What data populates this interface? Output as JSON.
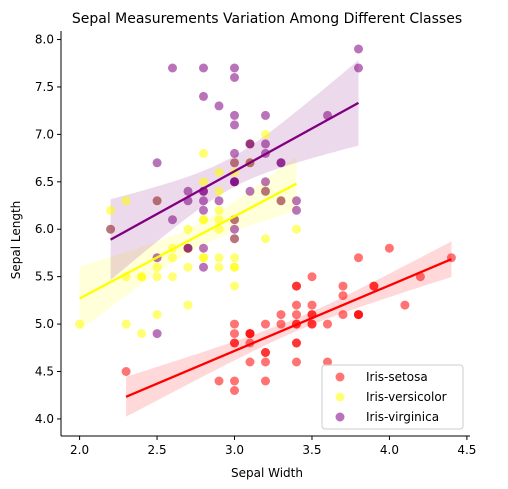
{
  "chart_data": {
    "type": "scatter",
    "title": "Sepal Measurements Variation Among Different Classes",
    "xlabel": "Sepal Width",
    "ylabel": "Sepal Length",
    "xlim": [
      1.88,
      4.52
    ],
    "ylim": [
      3.82,
      8.09
    ],
    "xticks": [
      2.0,
      2.5,
      3.0,
      3.5,
      4.0,
      4.5
    ],
    "xtick_labels": [
      "2.0",
      "2.5",
      "3.0",
      "3.5",
      "4.0",
      "4.5"
    ],
    "yticks": [
      4.0,
      4.5,
      5.0,
      5.5,
      6.0,
      6.5,
      7.0,
      7.5,
      8.0
    ],
    "ytick_labels": [
      "4.0",
      "4.5",
      "5.0",
      "5.5",
      "6.0",
      "6.5",
      "7.0",
      "7.5",
      "8.0"
    ],
    "legend_position": "lower-right",
    "grid": false,
    "series": [
      {
        "name": "Iris-setosa",
        "color": "#ff0000",
        "points": [
          [
            3.5,
            5.1
          ],
          [
            3.0,
            4.9
          ],
          [
            3.2,
            4.7
          ],
          [
            3.1,
            4.6
          ],
          [
            3.6,
            5.0
          ],
          [
            3.9,
            5.4
          ],
          [
            3.4,
            4.6
          ],
          [
            3.4,
            5.0
          ],
          [
            2.9,
            4.4
          ],
          [
            3.1,
            4.9
          ],
          [
            3.7,
            5.4
          ],
          [
            3.4,
            4.8
          ],
          [
            3.0,
            4.8
          ],
          [
            3.0,
            4.3
          ],
          [
            4.0,
            5.8
          ],
          [
            4.4,
            5.7
          ],
          [
            3.9,
            5.4
          ],
          [
            3.5,
            5.1
          ],
          [
            3.8,
            5.7
          ],
          [
            3.8,
            5.1
          ],
          [
            3.4,
            5.4
          ],
          [
            3.7,
            5.1
          ],
          [
            3.6,
            4.6
          ],
          [
            3.3,
            5.1
          ],
          [
            3.4,
            4.8
          ],
          [
            3.0,
            5.0
          ],
          [
            3.4,
            5.0
          ],
          [
            3.5,
            5.2
          ],
          [
            3.4,
            5.2
          ],
          [
            3.2,
            4.7
          ],
          [
            3.1,
            4.8
          ],
          [
            3.4,
            5.4
          ],
          [
            4.1,
            5.2
          ],
          [
            4.2,
            5.5
          ],
          [
            3.1,
            4.9
          ],
          [
            3.2,
            5.0
          ],
          [
            3.5,
            5.5
          ],
          [
            3.1,
            4.9
          ],
          [
            3.0,
            4.4
          ],
          [
            3.4,
            5.1
          ],
          [
            3.5,
            5.0
          ],
          [
            2.3,
            4.5
          ],
          [
            3.2,
            4.4
          ],
          [
            3.5,
            5.0
          ],
          [
            3.8,
            5.1
          ],
          [
            3.0,
            4.8
          ],
          [
            3.8,
            5.1
          ],
          [
            3.2,
            4.6
          ],
          [
            3.7,
            5.3
          ],
          [
            3.3,
            5.0
          ]
        ]
      },
      {
        "name": "Iris-versicolor",
        "color": "#ffff00",
        "points": [
          [
            3.2,
            7.0
          ],
          [
            3.2,
            6.4
          ],
          [
            3.1,
            6.9
          ],
          [
            2.3,
            5.5
          ],
          [
            2.8,
            6.5
          ],
          [
            2.8,
            5.7
          ],
          [
            3.3,
            6.3
          ],
          [
            2.4,
            4.9
          ],
          [
            2.9,
            6.6
          ],
          [
            2.7,
            5.2
          ],
          [
            2.0,
            5.0
          ],
          [
            3.0,
            5.9
          ],
          [
            2.2,
            6.0
          ],
          [
            2.9,
            6.1
          ],
          [
            2.9,
            5.6
          ],
          [
            3.1,
            6.7
          ],
          [
            3.0,
            5.6
          ],
          [
            2.7,
            5.8
          ],
          [
            2.2,
            6.2
          ],
          [
            2.5,
            5.6
          ],
          [
            3.2,
            5.9
          ],
          [
            2.8,
            6.1
          ],
          [
            2.5,
            6.3
          ],
          [
            2.8,
            6.1
          ],
          [
            2.9,
            6.4
          ],
          [
            3.0,
            6.6
          ],
          [
            2.8,
            6.8
          ],
          [
            3.0,
            6.7
          ],
          [
            2.9,
            6.0
          ],
          [
            2.6,
            5.7
          ],
          [
            2.4,
            5.5
          ],
          [
            2.4,
            5.5
          ],
          [
            2.7,
            5.8
          ],
          [
            2.7,
            6.0
          ],
          [
            3.0,
            5.4
          ],
          [
            3.4,
            6.0
          ],
          [
            3.1,
            6.7
          ],
          [
            2.3,
            6.3
          ],
          [
            3.0,
            5.6
          ],
          [
            2.5,
            5.5
          ],
          [
            2.6,
            5.5
          ],
          [
            3.0,
            6.1
          ],
          [
            2.6,
            5.8
          ],
          [
            2.3,
            5.0
          ],
          [
            2.7,
            5.6
          ],
          [
            3.0,
            5.7
          ],
          [
            2.9,
            5.7
          ],
          [
            2.9,
            6.2
          ],
          [
            2.5,
            5.1
          ],
          [
            2.8,
            5.7
          ]
        ]
      },
      {
        "name": "Iris-virginica",
        "color": "#800080",
        "points": [
          [
            3.3,
            6.3
          ],
          [
            2.7,
            5.8
          ],
          [
            3.0,
            7.1
          ],
          [
            2.9,
            6.3
          ],
          [
            3.0,
            6.5
          ],
          [
            3.0,
            7.6
          ],
          [
            2.5,
            4.9
          ],
          [
            2.9,
            7.3
          ],
          [
            2.5,
            6.7
          ],
          [
            3.6,
            7.2
          ],
          [
            3.2,
            6.5
          ],
          [
            2.7,
            6.4
          ],
          [
            3.0,
            6.8
          ],
          [
            2.5,
            5.7
          ],
          [
            2.8,
            5.8
          ],
          [
            3.2,
            6.4
          ],
          [
            3.0,
            6.5
          ],
          [
            3.8,
            7.7
          ],
          [
            2.6,
            7.7
          ],
          [
            2.2,
            6.0
          ],
          [
            3.2,
            6.9
          ],
          [
            2.8,
            5.6
          ],
          [
            2.8,
            7.7
          ],
          [
            2.7,
            6.3
          ],
          [
            3.3,
            6.7
          ],
          [
            3.2,
            7.2
          ],
          [
            2.8,
            6.2
          ],
          [
            3.0,
            6.1
          ],
          [
            2.8,
            6.4
          ],
          [
            3.0,
            7.2
          ],
          [
            2.8,
            7.4
          ],
          [
            3.8,
            7.9
          ],
          [
            2.8,
            6.4
          ],
          [
            2.8,
            6.3
          ],
          [
            2.6,
            6.1
          ],
          [
            3.0,
            7.7
          ],
          [
            3.4,
            6.3
          ],
          [
            3.1,
            6.4
          ],
          [
            3.0,
            6.0
          ],
          [
            3.1,
            6.9
          ],
          [
            3.1,
            6.7
          ],
          [
            3.1,
            6.9
          ],
          [
            2.7,
            5.8
          ],
          [
            3.2,
            6.8
          ],
          [
            3.3,
            6.7
          ],
          [
            3.0,
            6.7
          ],
          [
            2.5,
            6.3
          ],
          [
            3.0,
            6.5
          ],
          [
            3.4,
            6.2
          ],
          [
            3.0,
            5.9
          ]
        ]
      }
    ]
  }
}
